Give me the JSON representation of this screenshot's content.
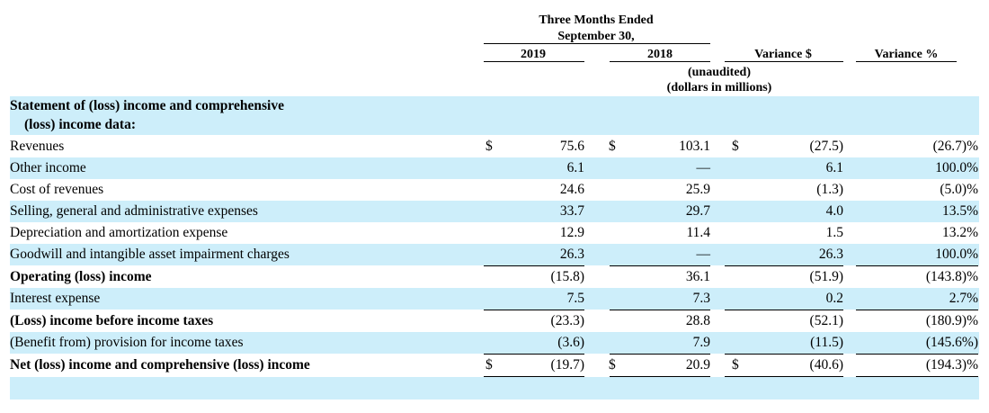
{
  "header": {
    "period_line1": "Three Months Ended",
    "period_line2": "September 30,",
    "col_2019": "2019",
    "col_2018": "2018",
    "col_var_dollar": "Variance $",
    "col_var_pct": "Variance %",
    "unaudited": "(unaudited)",
    "units": "(dollars in millions)"
  },
  "section_title_line1": "Statement of (loss) income and comprehensive",
  "section_title_line2": "(loss) income data:",
  "rows": [
    {
      "label": "Revenues",
      "c2019": "75.6",
      "c2018": "103.1",
      "var": "(27.5)",
      "pct": "(26.7)%",
      "dollar": "$"
    },
    {
      "label": "Other income",
      "c2019": "6.1",
      "c2018": "—",
      "var": "6.1",
      "pct": "100.0%",
      "dollar": ""
    },
    {
      "label": "Cost of revenues",
      "c2019": "24.6",
      "c2018": "25.9",
      "var": "(1.3)",
      "pct": "(5.0)%",
      "dollar": ""
    },
    {
      "label": "Selling, general and administrative expenses",
      "c2019": "33.7",
      "c2018": "29.7",
      "var": "4.0",
      "pct": "13.5%",
      "dollar": ""
    },
    {
      "label": "Depreciation and amortization expense",
      "c2019": "12.9",
      "c2018": "11.4",
      "var": "1.5",
      "pct": "13.2%",
      "dollar": ""
    },
    {
      "label": "Goodwill and intangible asset impairment charges",
      "c2019": "26.3",
      "c2018": "—",
      "var": "26.3",
      "pct": "100.0%",
      "dollar": ""
    },
    {
      "label": "Operating (loss) income",
      "c2019": "(15.8)",
      "c2018": "36.1",
      "var": "(51.9)",
      "pct": "(143.8)%",
      "dollar": ""
    },
    {
      "label": "Interest expense",
      "c2019": "7.5",
      "c2018": "7.3",
      "var": "0.2",
      "pct": "2.7%",
      "dollar": ""
    },
    {
      "label": "(Loss) income before income taxes",
      "c2019": "(23.3)",
      "c2018": "28.8",
      "var": "(52.1)",
      "pct": "(180.9)%",
      "dollar": ""
    },
    {
      "label": "(Benefit from) provision for income taxes",
      "c2019": "(3.6)",
      "c2018": "7.9",
      "var": "(11.5)",
      "pct": "(145.6%)",
      "dollar": ""
    },
    {
      "label": "Net (loss) income and comprehensive (loss) income",
      "c2019": "(19.7)",
      "c2018": "20.9",
      "var": "(40.6)",
      "pct": "(194.3)%",
      "dollar": "$"
    }
  ]
}
